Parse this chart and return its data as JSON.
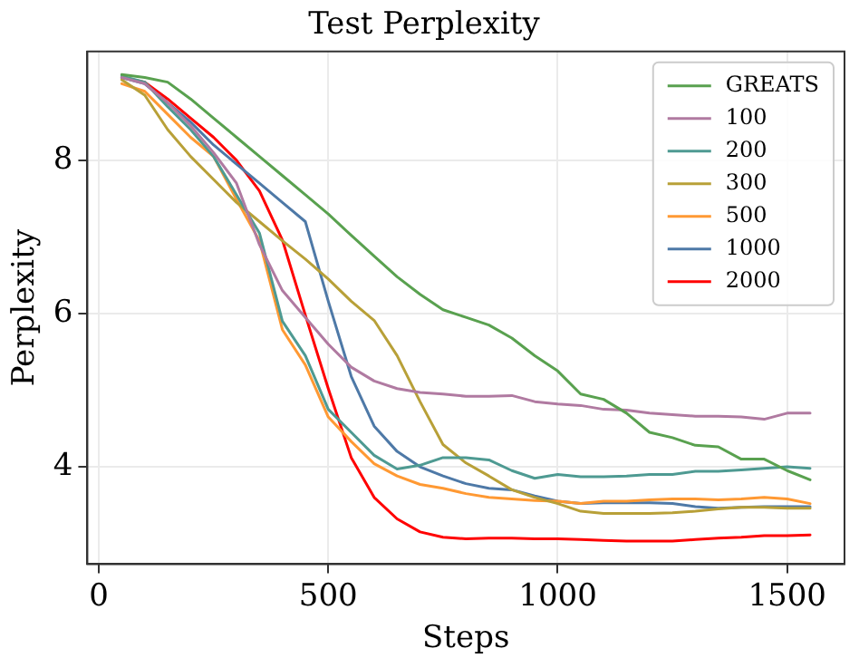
{
  "chart_data": {
    "type": "line",
    "title": "Test Perplexity",
    "xlabel": "Steps",
    "ylabel": "Perplexity",
    "x": [
      50,
      100,
      150,
      200,
      250,
      300,
      350,
      400,
      450,
      500,
      550,
      600,
      650,
      700,
      750,
      800,
      850,
      900,
      950,
      1000,
      1050,
      1100,
      1150,
      1200,
      1250,
      1300,
      1350,
      1400,
      1450,
      1500,
      1550
    ],
    "xlim": [
      -25,
      1625
    ],
    "xticks": [
      0,
      500,
      1000,
      1500
    ],
    "ylim": [
      2.73,
      9.42
    ],
    "yticks": [
      4,
      6,
      8
    ],
    "grid": true,
    "legend": "top right",
    "line_style": "solid",
    "marker": "none",
    "series": [
      {
        "name": "GREATS",
        "color": "#59a14f",
        "values": [
          9.12,
          9.08,
          9.02,
          8.8,
          8.55,
          8.3,
          8.05,
          7.8,
          7.55,
          7.3,
          7.02,
          6.75,
          6.48,
          6.25,
          6.05,
          5.95,
          5.85,
          5.68,
          5.45,
          5.25,
          4.95,
          4.88,
          4.7,
          4.45,
          4.38,
          4.28,
          4.26,
          4.1,
          4.1,
          3.95,
          3.83
        ]
      },
      {
        "name": "100",
        "color": "#b07aa1",
        "values": [
          9.08,
          9.0,
          8.75,
          8.45,
          8.1,
          7.7,
          6.9,
          6.3,
          5.95,
          5.6,
          5.3,
          5.12,
          5.02,
          4.97,
          4.95,
          4.92,
          4.92,
          4.93,
          4.85,
          4.82,
          4.8,
          4.75,
          4.74,
          4.7,
          4.68,
          4.66,
          4.66,
          4.65,
          4.62,
          4.7,
          4.7
        ]
      },
      {
        "name": "200",
        "color": "#4e9a92",
        "values": [
          9.1,
          9.02,
          8.7,
          8.4,
          8.05,
          7.55,
          7.05,
          5.9,
          5.45,
          4.75,
          4.45,
          4.15,
          3.97,
          4.02,
          4.12,
          4.12,
          4.09,
          3.95,
          3.85,
          3.9,
          3.87,
          3.87,
          3.88,
          3.9,
          3.9,
          3.94,
          3.94,
          3.96,
          3.98,
          4.0,
          3.98
        ]
      },
      {
        "name": "300",
        "color": "#b8a038",
        "values": [
          9.05,
          8.85,
          8.4,
          8.05,
          7.75,
          7.45,
          7.2,
          6.95,
          6.71,
          6.45,
          6.16,
          5.91,
          5.45,
          4.85,
          4.29,
          4.05,
          3.88,
          3.7,
          3.6,
          3.52,
          3.42,
          3.39,
          3.39,
          3.39,
          3.4,
          3.42,
          3.45,
          3.47,
          3.47,
          3.46,
          3.46
        ]
      },
      {
        "name": "500",
        "color": "#ff9933",
        "values": [
          9.0,
          8.9,
          8.6,
          8.3,
          8.05,
          7.49,
          6.95,
          5.79,
          5.33,
          4.65,
          4.33,
          4.04,
          3.88,
          3.77,
          3.72,
          3.65,
          3.6,
          3.58,
          3.56,
          3.55,
          3.52,
          3.55,
          3.55,
          3.57,
          3.58,
          3.58,
          3.57,
          3.58,
          3.6,
          3.58,
          3.52
        ]
      },
      {
        "name": "1000",
        "color": "#4e79a7",
        "values": [
          9.08,
          9.0,
          8.75,
          8.5,
          8.2,
          7.95,
          7.7,
          7.45,
          7.2,
          6.16,
          5.18,
          4.53,
          4.2,
          4.0,
          3.88,
          3.78,
          3.72,
          3.7,
          3.62,
          3.55,
          3.52,
          3.53,
          3.53,
          3.53,
          3.52,
          3.48,
          3.46,
          3.47,
          3.48,
          3.48,
          3.48
        ]
      },
      {
        "name": "2000",
        "color": "#ff0000",
        "values": [
          9.08,
          9.02,
          8.8,
          8.55,
          8.3,
          8.0,
          7.6,
          6.96,
          5.98,
          5.02,
          4.12,
          3.6,
          3.32,
          3.15,
          3.08,
          3.06,
          3.07,
          3.07,
          3.06,
          3.06,
          3.05,
          3.04,
          3.03,
          3.03,
          3.03,
          3.05,
          3.07,
          3.08,
          3.1,
          3.1,
          3.11
        ]
      }
    ]
  }
}
